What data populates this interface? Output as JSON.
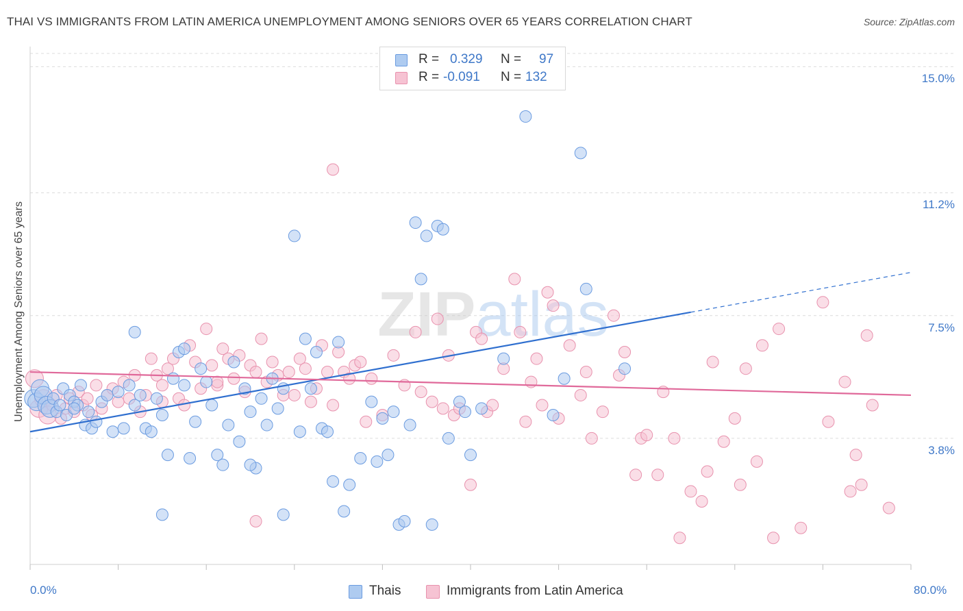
{
  "title": "THAI VS IMMIGRANTS FROM LATIN AMERICA UNEMPLOYMENT AMONG SENIORS OVER 65 YEARS CORRELATION CHART",
  "source": "Source: ZipAtlas.com",
  "watermark": "ZIPatlas",
  "colors": {
    "thais_fill": "#aecbf0",
    "thais_stroke": "#6a9be0",
    "thais_line": "#2f6fcf",
    "latin_fill": "#f6c3d3",
    "latin_stroke": "#e891ad",
    "latin_line": "#e0699a",
    "grid": "#dcdcdc",
    "axis_text": "#3f78c8"
  },
  "legend": {
    "rows": [
      {
        "r_label": "R =",
        "r_value": "0.329",
        "n_label": "N =",
        "n_value": "97"
      },
      {
        "r_label": "R =",
        "r_value": "-0.091",
        "n_label": "N =",
        "n_value": "132"
      }
    ]
  },
  "bottom_legend": [
    "Thais",
    "Immigrants from Latin America"
  ],
  "chart_data": {
    "type": "scatter",
    "title": "THAI VS IMMIGRANTS FROM LATIN AMERICA UNEMPLOYMENT AMONG SENIORS OVER 65 YEARS CORRELATION CHART",
    "xlabel": "",
    "ylabel": "Unemployment Among Seniors over 65 years",
    "xlim": [
      0,
      80
    ],
    "ylim": [
      0,
      15.4
    ],
    "x_tick_labels": [
      "0.0%",
      "80.0%"
    ],
    "y_ticks": [
      3.8,
      7.5,
      11.2,
      15.0
    ],
    "y_tick_labels": [
      "3.8%",
      "7.5%",
      "11.2%",
      "15.0%"
    ],
    "grid": true,
    "series": [
      {
        "name": "Thais",
        "R": 0.329,
        "N": 97,
        "trend": {
          "x0": 0,
          "y0": 4.0,
          "x1": 60,
          "y1": 7.6,
          "dash_to_x": 80,
          "dash_to_y": 8.8
        },
        "points": [
          [
            0.3,
            5.0
          ],
          [
            0.6,
            4.9
          ],
          [
            0.9,
            5.3
          ],
          [
            1.2,
            5.1
          ],
          [
            1.5,
            4.8
          ],
          [
            1.8,
            4.7
          ],
          [
            2.1,
            5.0
          ],
          [
            2.4,
            4.6
          ],
          [
            2.7,
            4.8
          ],
          [
            3.0,
            5.3
          ],
          [
            3.3,
            4.5
          ],
          [
            3.6,
            5.1
          ],
          [
            4.0,
            4.9
          ],
          [
            4.3,
            4.8
          ],
          [
            4.6,
            5.4
          ],
          [
            5.0,
            4.2
          ],
          [
            5.3,
            4.6
          ],
          [
            5.6,
            4.1
          ],
          [
            6.0,
            4.3
          ],
          [
            6.5,
            4.9
          ],
          [
            7.0,
            5.1
          ],
          [
            7.5,
            4.0
          ],
          [
            8.0,
            5.2
          ],
          [
            8.5,
            4.1
          ],
          [
            9.0,
            5.4
          ],
          [
            9.5,
            4.8
          ],
          [
            10.0,
            5.1
          ],
          [
            10.5,
            4.1
          ],
          [
            11.0,
            4.0
          ],
          [
            11.5,
            5.0
          ],
          [
            12.0,
            4.5
          ],
          [
            12.5,
            3.3
          ],
          [
            13.0,
            5.6
          ],
          [
            13.5,
            6.4
          ],
          [
            14.0,
            5.4
          ],
          [
            14.5,
            3.2
          ],
          [
            15.0,
            4.3
          ],
          [
            15.5,
            5.9
          ],
          [
            16.0,
            5.5
          ],
          [
            16.5,
            4.8
          ],
          [
            17.0,
            3.3
          ],
          [
            17.5,
            3.0
          ],
          [
            18.0,
            4.2
          ],
          [
            18.5,
            6.1
          ],
          [
            19.0,
            3.7
          ],
          [
            19.5,
            5.3
          ],
          [
            20.0,
            4.6
          ],
          [
            20.5,
            2.9
          ],
          [
            21.0,
            5.0
          ],
          [
            21.5,
            4.2
          ],
          [
            22.0,
            5.6
          ],
          [
            22.5,
            4.7
          ],
          [
            23.0,
            5.3
          ],
          [
            24.0,
            9.9
          ],
          [
            24.5,
            4.0
          ],
          [
            25.0,
            6.8
          ],
          [
            25.5,
            5.3
          ],
          [
            26.0,
            6.4
          ],
          [
            26.5,
            4.1
          ],
          [
            27.0,
            4.0
          ],
          [
            23.0,
            1.5
          ],
          [
            27.5,
            2.5
          ],
          [
            28.0,
            6.7
          ],
          [
            28.5,
            1.6
          ],
          [
            29.0,
            2.4
          ],
          [
            30.0,
            3.2
          ],
          [
            31.0,
            4.9
          ],
          [
            31.5,
            3.1
          ],
          [
            32.0,
            4.4
          ],
          [
            32.5,
            3.3
          ],
          [
            33.0,
            4.6
          ],
          [
            33.5,
            1.2
          ],
          [
            34.0,
            1.3
          ],
          [
            34.5,
            4.2
          ],
          [
            35.0,
            10.3
          ],
          [
            35.5,
            8.6
          ],
          [
            36.0,
            9.9
          ],
          [
            36.5,
            1.2
          ],
          [
            37.0,
            10.2
          ],
          [
            37.5,
            10.1
          ],
          [
            38.0,
            3.8
          ],
          [
            39.0,
            4.9
          ],
          [
            39.5,
            4.6
          ],
          [
            40.0,
            3.3
          ],
          [
            41.0,
            4.7
          ],
          [
            43.0,
            6.2
          ],
          [
            45.0,
            13.5
          ],
          [
            47.5,
            4.5
          ],
          [
            48.5,
            5.6
          ],
          [
            50.0,
            12.4
          ],
          [
            50.5,
            8.3
          ],
          [
            54.0,
            5.9
          ],
          [
            12.0,
            1.5
          ],
          [
            4.0,
            4.7
          ],
          [
            9.5,
            7.0
          ],
          [
            14.0,
            6.5
          ],
          [
            20.0,
            3.0
          ]
        ]
      },
      {
        "name": "Immigrants from Latin America",
        "R": -0.091,
        "N": 132,
        "trend": {
          "x0": 0,
          "y0": 5.8,
          "x1": 80,
          "y1": 5.1
        },
        "points": [
          [
            0.4,
            5.6
          ],
          [
            0.8,
            4.7
          ],
          [
            1.2,
            5.0
          ],
          [
            1.6,
            4.5
          ],
          [
            2.0,
            4.8
          ],
          [
            2.4,
            5.1
          ],
          [
            2.8,
            4.4
          ],
          [
            3.2,
            4.7
          ],
          [
            3.6,
            5.0
          ],
          [
            4.0,
            4.6
          ],
          [
            4.4,
            5.2
          ],
          [
            4.8,
            4.8
          ],
          [
            5.2,
            5.0
          ],
          [
            5.6,
            4.5
          ],
          [
            6.0,
            5.4
          ],
          [
            6.5,
            4.7
          ],
          [
            7.0,
            5.1
          ],
          [
            7.5,
            5.3
          ],
          [
            8.0,
            4.9
          ],
          [
            8.5,
            5.5
          ],
          [
            9.0,
            5.0
          ],
          [
            9.5,
            5.7
          ],
          [
            10.0,
            4.6
          ],
          [
            10.5,
            5.1
          ],
          [
            11.0,
            6.2
          ],
          [
            11.5,
            5.7
          ],
          [
            12.0,
            5.4
          ],
          [
            12.5,
            5.9
          ],
          [
            13.0,
            6.2
          ],
          [
            13.5,
            5.0
          ],
          [
            14.0,
            4.8
          ],
          [
            14.5,
            6.6
          ],
          [
            15.0,
            6.1
          ],
          [
            15.5,
            5.3
          ],
          [
            16.0,
            7.1
          ],
          [
            16.5,
            6.0
          ],
          [
            17.0,
            5.4
          ],
          [
            17.5,
            6.5
          ],
          [
            18.0,
            6.2
          ],
          [
            18.5,
            5.6
          ],
          [
            19.0,
            6.3
          ],
          [
            19.5,
            5.2
          ],
          [
            20.0,
            6.0
          ],
          [
            20.5,
            5.8
          ],
          [
            21.0,
            6.8
          ],
          [
            21.5,
            5.5
          ],
          [
            22.0,
            6.1
          ],
          [
            22.5,
            5.7
          ],
          [
            23.0,
            5.1
          ],
          [
            23.5,
            5.8
          ],
          [
            24.0,
            5.1
          ],
          [
            24.5,
            6.2
          ],
          [
            25.0,
            5.9
          ],
          [
            25.5,
            4.9
          ],
          [
            26.0,
            5.3
          ],
          [
            26.5,
            6.6
          ],
          [
            27.0,
            5.8
          ],
          [
            27.5,
            4.8
          ],
          [
            28.0,
            6.4
          ],
          [
            28.5,
            5.8
          ],
          [
            29.0,
            5.6
          ],
          [
            29.5,
            6.0
          ],
          [
            30.0,
            6.1
          ],
          [
            30.5,
            4.3
          ],
          [
            31.0,
            5.6
          ],
          [
            32.0,
            4.5
          ],
          [
            33.0,
            6.3
          ],
          [
            34.0,
            5.4
          ],
          [
            35.0,
            7.0
          ],
          [
            35.5,
            5.2
          ],
          [
            36.5,
            4.9
          ],
          [
            37.0,
            7.4
          ],
          [
            37.5,
            4.7
          ],
          [
            38.0,
            6.3
          ],
          [
            38.5,
            4.5
          ],
          [
            39.0,
            4.7
          ],
          [
            40.0,
            2.4
          ],
          [
            40.5,
            7.0
          ],
          [
            41.0,
            6.8
          ],
          [
            41.5,
            4.6
          ],
          [
            42.0,
            4.8
          ],
          [
            43.0,
            5.9
          ],
          [
            44.0,
            8.6
          ],
          [
            44.5,
            7.0
          ],
          [
            45.0,
            4.3
          ],
          [
            45.5,
            5.5
          ],
          [
            46.0,
            6.2
          ],
          [
            46.5,
            4.8
          ],
          [
            47.0,
            8.2
          ],
          [
            47.5,
            7.8
          ],
          [
            48.0,
            4.4
          ],
          [
            49.0,
            6.6
          ],
          [
            50.0,
            5.1
          ],
          [
            50.5,
            5.8
          ],
          [
            51.0,
            3.8
          ],
          [
            52.0,
            4.6
          ],
          [
            53.0,
            7.5
          ],
          [
            53.5,
            5.7
          ],
          [
            54.0,
            6.4
          ],
          [
            55.0,
            2.7
          ],
          [
            55.5,
            3.8
          ],
          [
            56.0,
            3.9
          ],
          [
            57.0,
            2.7
          ],
          [
            57.5,
            5.2
          ],
          [
            58.5,
            3.8
          ],
          [
            59.0,
            0.8
          ],
          [
            60.0,
            2.2
          ],
          [
            61.0,
            1.9
          ],
          [
            61.5,
            2.8
          ],
          [
            62.0,
            6.1
          ],
          [
            63.0,
            3.7
          ],
          [
            64.0,
            4.4
          ],
          [
            64.5,
            2.4
          ],
          [
            65.0,
            5.9
          ],
          [
            66.0,
            3.1
          ],
          [
            66.5,
            6.6
          ],
          [
            67.5,
            0.8
          ],
          [
            68.0,
            7.1
          ],
          [
            70.0,
            1.1
          ],
          [
            72.0,
            7.9
          ],
          [
            72.5,
            4.3
          ],
          [
            74.0,
            5.5
          ],
          [
            74.5,
            2.2
          ],
          [
            75.0,
            3.3
          ],
          [
            75.5,
            2.4
          ],
          [
            76.0,
            6.9
          ],
          [
            76.5,
            4.8
          ],
          [
            78.0,
            1.7
          ],
          [
            12.0,
            4.9
          ],
          [
            17.0,
            5.5
          ],
          [
            20.5,
            1.3
          ],
          [
            27.5,
            11.9
          ]
        ]
      }
    ]
  }
}
